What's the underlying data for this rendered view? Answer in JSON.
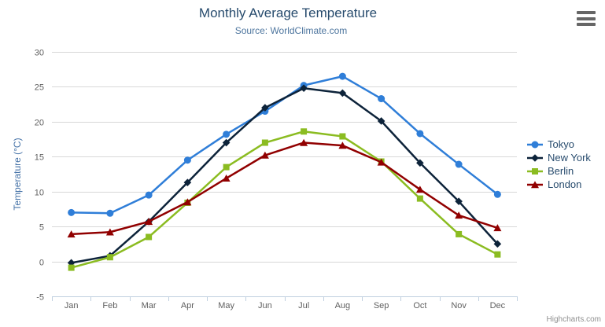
{
  "chart": {
    "title": "Monthly Average Temperature",
    "subtitle": "Source: WorldClimate.com",
    "credits": "Highcharts.com"
  },
  "chart_data": {
    "type": "line",
    "title": "Monthly Average Temperature",
    "subtitle": "Source: WorldClimate.com",
    "xlabel": "",
    "ylabel": "Temperature (°C)",
    "categories": [
      "Jan",
      "Feb",
      "Mar",
      "Apr",
      "May",
      "Jun",
      "Jul",
      "Aug",
      "Sep",
      "Oct",
      "Nov",
      "Dec"
    ],
    "ylim": [
      -5,
      30
    ],
    "ytick_step": 5,
    "grid": true,
    "legend_position": "right",
    "series": [
      {
        "name": "Tokyo",
        "color": "#2f7ed8",
        "marker": "circle",
        "values": [
          7.0,
          6.9,
          9.5,
          14.5,
          18.2,
          21.5,
          25.2,
          26.5,
          23.3,
          18.3,
          13.9,
          9.6
        ]
      },
      {
        "name": "New York",
        "color": "#0d233a",
        "marker": "diamond",
        "values": [
          -0.2,
          0.8,
          5.7,
          11.3,
          17.0,
          22.0,
          24.8,
          24.1,
          20.1,
          14.1,
          8.6,
          2.5
        ]
      },
      {
        "name": "Berlin",
        "color": "#8bbc21",
        "marker": "square",
        "values": [
          -0.9,
          0.6,
          3.5,
          8.4,
          13.5,
          17.0,
          18.6,
          17.9,
          14.3,
          9.0,
          3.9,
          1.0
        ]
      },
      {
        "name": "London",
        "color": "#910000",
        "marker": "triangle",
        "values": [
          3.9,
          4.2,
          5.7,
          8.5,
          11.9,
          15.2,
          17.0,
          16.6,
          14.2,
          10.3,
          6.6,
          4.8
        ]
      }
    ],
    "styles": {
      "title_color": "#274b6d",
      "subtitle_color": "#4d759e",
      "axis_label_color": "#606060",
      "axis_title_color": "#4572a7",
      "grid_color": "#d8d8d8",
      "axis_line_color": "#c0d0e0",
      "legend_text_color": "#274b6d",
      "credits_color": "#909090",
      "menu_icon_color": "#666666"
    }
  }
}
